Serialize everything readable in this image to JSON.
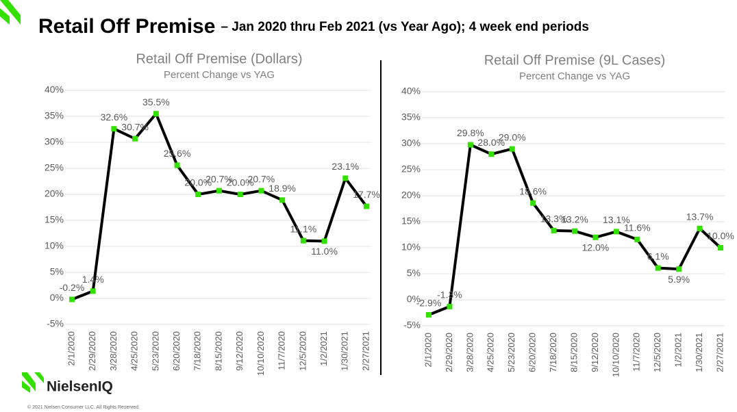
{
  "header": {
    "title": "Retail Off Premise",
    "subtitle": "– Jan 2020 thru Feb 2021 (vs Year Ago); 4 week end periods"
  },
  "footer": {
    "brand": "NielsenIQ",
    "copyright": "© 2021 Nielsen Consumer LLC. All Rights Reserved."
  },
  "chart_data": [
    {
      "type": "line",
      "title": "Retail Off Premise (Dollars)",
      "subtitle": "Percent Change vs YAG",
      "categories": [
        "2/1/2020",
        "2/29/2020",
        "3/28/2020",
        "4/25/2020",
        "5/23/2020",
        "6/20/2020",
        "7/18/2020",
        "8/15/2020",
        "9/12/2020",
        "10/10/2020",
        "11/7/2020",
        "12/5/2020",
        "1/2/2021",
        "1/30/2021",
        "2/27/2021"
      ],
      "series": [
        {
          "color": "#000000",
          "marker_color": "#33e000",
          "values": [
            -0.2,
            1.4,
            32.6,
            30.7,
            35.5,
            25.6,
            20.0,
            20.7,
            20.0,
            20.7,
            18.9,
            11.1,
            11.0,
            23.1,
            17.7
          ],
          "value_labels": [
            "-0.2%",
            "1.4%",
            "32.6%",
            "30.7%",
            "35.5%",
            "25.6%",
            "20.0%",
            "20.7%",
            "20.0%",
            "20.7%",
            "18.9%",
            "11.1%",
            "11.0%",
            "23.1%",
            "17.7%"
          ]
        }
      ],
      "ylim": [
        -5,
        40
      ],
      "yticks": [
        {
          "value": -5,
          "label": "-5%"
        },
        {
          "value": 0,
          "label": "0%"
        },
        {
          "value": 5,
          "label": "5%"
        },
        {
          "value": 10,
          "label": "10%"
        },
        {
          "value": 15,
          "label": "15%"
        },
        {
          "value": 20,
          "label": "20%"
        },
        {
          "value": 25,
          "label": "25%"
        },
        {
          "value": 30,
          "label": "30%"
        },
        {
          "value": 35,
          "label": "35%"
        },
        {
          "value": 40,
          "label": "40%"
        }
      ],
      "grid": true
    },
    {
      "type": "line",
      "title": "Retail Off Premise (9L Cases)",
      "subtitle": "Percent Change vs YAG",
      "categories": [
        "2/1/2020",
        "2/29/2020",
        "3/28/2020",
        "4/25/2020",
        "5/23/2020",
        "6/20/2020",
        "7/18/2020",
        "8/15/2020",
        "9/12/2020",
        "10/10/2020",
        "11/7/2020",
        "12/5/2020",
        "1/2/2021",
        "1/30/2021",
        "2/27/2021"
      ],
      "series": [
        {
          "color": "#000000",
          "marker_color": "#33e000",
          "values": [
            -2.9,
            -1.3,
            29.8,
            28.0,
            29.0,
            18.6,
            13.3,
            13.2,
            12.0,
            13.1,
            11.6,
            6.1,
            5.9,
            13.7,
            10.0
          ],
          "value_labels": [
            "-2.9%",
            "-1.3%",
            "29.8%",
            "28.0%",
            "29.0%",
            "18.6%",
            "13.3%",
            "13.2%",
            "12.0%",
            "13.1%",
            "11.6%",
            "6.1%",
            "5.9%",
            "13.7%",
            "10.0%"
          ]
        }
      ],
      "ylim": [
        -5,
        40
      ],
      "yticks": [
        {
          "value": -5,
          "label": "-5%"
        },
        {
          "value": 0,
          "label": "0%"
        },
        {
          "value": 5,
          "label": "5%"
        },
        {
          "value": 10,
          "label": "10%"
        },
        {
          "value": 15,
          "label": "15%"
        },
        {
          "value": 20,
          "label": "20%"
        },
        {
          "value": 25,
          "label": "25%"
        },
        {
          "value": 30,
          "label": "30%"
        },
        {
          "value": 35,
          "label": "35%"
        },
        {
          "value": 40,
          "label": "40%"
        }
      ],
      "grid": true
    }
  ]
}
